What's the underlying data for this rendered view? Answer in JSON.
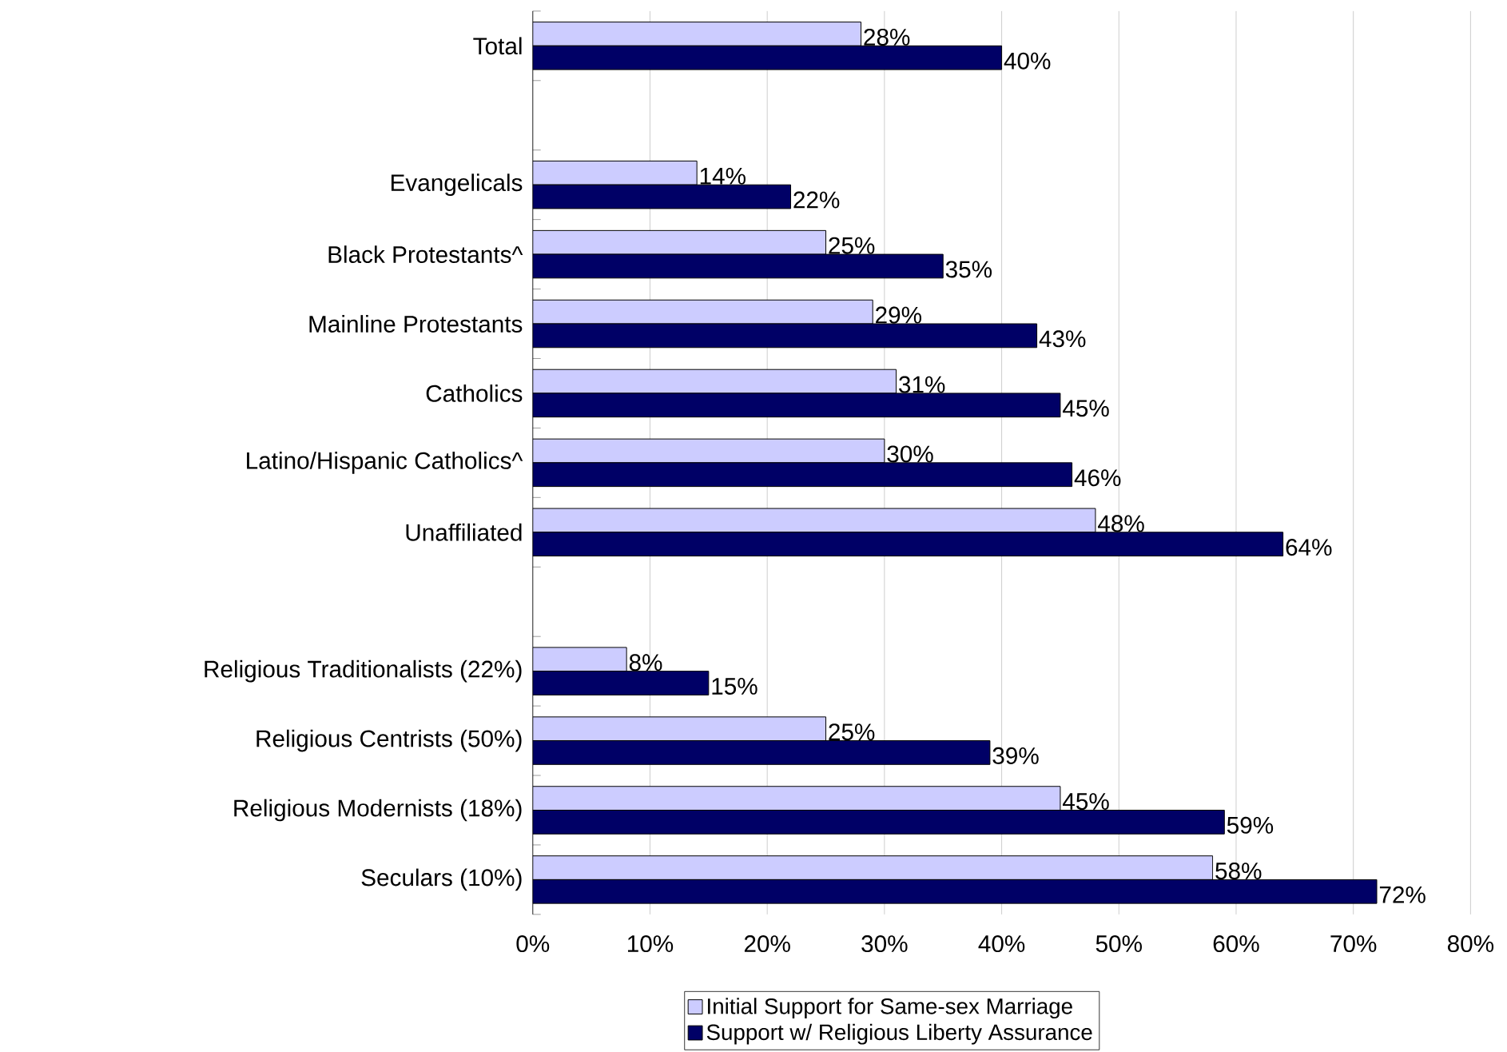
{
  "chart_data": {
    "type": "bar",
    "orientation": "horizontal",
    "categories": [
      "Total",
      null,
      "Evangelicals",
      "Black Protestants^",
      "Mainline Protestants",
      "Catholics",
      "Latino/Hispanic Catholics^",
      "Unaffiliated",
      null,
      "Religious Traditionalists (22%)",
      "Religious Centrists (50%)",
      "Religious Modernists (18%)",
      "Seculars (10%)"
    ],
    "series": [
      {
        "name": "Initial Support for Same-sex Marriage",
        "color": "#ccccff",
        "values": [
          28,
          null,
          14,
          25,
          29,
          31,
          30,
          48,
          null,
          8,
          25,
          45,
          58
        ],
        "value_labels": [
          "28%",
          null,
          "14%",
          "25%",
          "29%",
          "31%",
          "30%",
          "48%",
          null,
          "8%",
          "25%",
          "45%",
          "58%"
        ]
      },
      {
        "name": "Support w/ Religious Liberty Assurance",
        "color": "#000066",
        "values": [
          40,
          null,
          22,
          35,
          43,
          45,
          46,
          64,
          null,
          15,
          39,
          59,
          72
        ],
        "value_labels": [
          "40%",
          null,
          "22%",
          "35%",
          "43%",
          "45%",
          "46%",
          "64%",
          null,
          "15%",
          "39%",
          "59%",
          "72%"
        ]
      }
    ],
    "xlim": [
      0,
      80
    ],
    "xticks": [
      {
        "value": 0,
        "label": "0%"
      },
      {
        "value": 10,
        "label": "10%"
      },
      {
        "value": 20,
        "label": "20%"
      },
      {
        "value": 30,
        "label": "30%"
      },
      {
        "value": 40,
        "label": "40%"
      },
      {
        "value": 50,
        "label": "50%"
      },
      {
        "value": 60,
        "label": "60%"
      },
      {
        "value": 70,
        "label": "70%"
      },
      {
        "value": 80,
        "label": "80%"
      }
    ],
    "grid": "x",
    "legend": "bottom"
  }
}
